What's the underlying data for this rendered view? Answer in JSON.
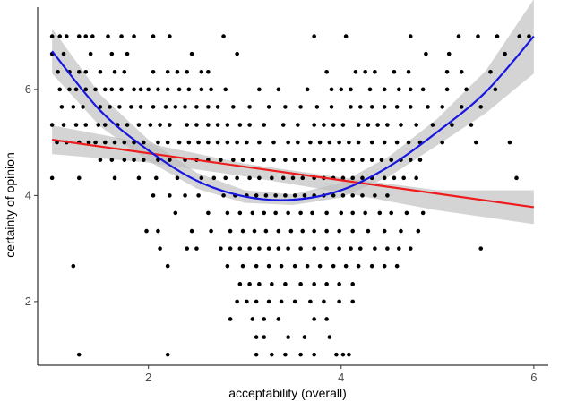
{
  "chart_data": {
    "type": "scatter",
    "title": "",
    "xlabel": "acceptability (overall)",
    "ylabel": "certainty of opinion",
    "xlim": [
      0.85,
      6.15
    ],
    "ylim": [
      0.8,
      7.55
    ],
    "x_ticks": [
      2,
      4,
      6
    ],
    "y_ticks": [
      2,
      4,
      6
    ],
    "grid": false,
    "colors": {
      "points": "#000000",
      "linear_fit": "#ee1c1c",
      "loess_fit": "#1717e0",
      "ribbon": "#bdbdbd"
    },
    "points": {
      "jitter_note_values_are_visible_rows": true,
      "rows": [
        {
          "y": 7.0,
          "x": [
            1.0,
            1.08,
            1.15,
            1.28,
            1.35,
            1.42,
            1.58,
            1.72,
            1.85,
            2.05,
            2.22,
            2.78,
            3.72,
            4.05,
            4.72,
            5.22,
            5.42,
            5.62,
            5.85,
            5.95
          ]
        },
        {
          "y": 6.67,
          "x": [
            1.0,
            1.12,
            1.4,
            1.62,
            1.78,
            2.45,
            2.92,
            4.88,
            5.12,
            5.7
          ]
        },
        {
          "y": 6.33,
          "x": [
            1.06,
            1.18,
            1.28,
            1.35,
            1.5,
            1.65,
            1.75,
            2.05,
            2.2,
            2.3,
            2.4,
            2.55,
            2.62,
            3.85,
            4.15,
            4.25,
            4.35,
            4.55,
            4.7,
            5.1,
            5.25,
            5.55
          ]
        },
        {
          "y": 6.0,
          "x": [
            1.08,
            1.18,
            1.25,
            1.35,
            1.45,
            1.55,
            1.62,
            1.72,
            1.85,
            1.92,
            2.0,
            2.1,
            2.2,
            2.32,
            2.42,
            2.55,
            2.65,
            2.8,
            3.15,
            3.35,
            3.65,
            3.9,
            4.0,
            4.1,
            4.3,
            4.45,
            4.6,
            4.72,
            4.85,
            5.1,
            5.3,
            5.6
          ]
        },
        {
          "y": 5.67,
          "x": [
            1.1,
            1.22,
            1.32,
            1.5,
            1.6,
            1.7,
            1.82,
            1.92,
            2.05,
            2.18,
            2.28,
            2.38,
            2.5,
            2.62,
            2.72,
            2.88,
            3.05,
            3.25,
            3.42,
            3.58,
            3.75,
            3.9,
            4.1,
            4.2,
            4.32,
            4.45,
            4.58,
            4.72,
            4.9,
            5.05,
            5.25,
            5.45
          ]
        },
        {
          "y": 5.33,
          "x": [
            1.0,
            1.12,
            1.25,
            1.35,
            1.48,
            1.55,
            1.68,
            1.78,
            1.9,
            2.02,
            2.12,
            2.22,
            2.4,
            2.5,
            2.62,
            2.72,
            2.82,
            2.95,
            3.05,
            3.2,
            3.4,
            3.55,
            3.72,
            3.82,
            3.92,
            4.02,
            4.18,
            4.28,
            4.38,
            4.48,
            4.62,
            4.78,
            4.95,
            5.15,
            5.35
          ]
        },
        {
          "y": 5.0,
          "x": [
            1.05,
            1.15,
            1.28,
            1.38,
            1.45,
            1.55,
            1.65,
            1.75,
            1.85,
            1.95,
            2.1,
            2.2,
            2.32,
            2.42,
            2.52,
            2.62,
            2.72,
            2.82,
            2.92,
            3.02,
            3.15,
            3.3,
            3.45,
            3.55,
            3.68,
            3.78,
            3.88,
            3.98,
            4.08,
            4.18,
            4.32,
            4.45,
            4.58,
            4.7,
            4.82,
            5.05,
            5.4,
            5.75
          ]
        },
        {
          "y": 4.67,
          "x": [
            1.5,
            1.62,
            1.75,
            1.85,
            1.95,
            2.1,
            2.22,
            2.38,
            2.5,
            2.62,
            2.75,
            2.88,
            2.98,
            3.08,
            3.2,
            3.3,
            3.42,
            3.52,
            3.62,
            3.72,
            3.82,
            3.92,
            4.02,
            4.12,
            4.22,
            4.32,
            4.42,
            4.52,
            4.62,
            4.72,
            4.82
          ]
        },
        {
          "y": 4.33,
          "x": [
            1.0,
            1.28,
            1.65,
            1.9,
            2.08,
            2.3,
            2.55,
            2.68,
            2.8,
            2.92,
            3.05,
            3.15,
            3.28,
            3.4,
            3.5,
            3.6,
            3.72,
            3.82,
            3.92,
            4.02,
            4.12,
            4.22,
            4.32,
            4.45,
            4.55,
            4.65,
            4.78,
            5.82
          ]
        },
        {
          "y": 4.0,
          "x": [
            2.05,
            2.22,
            2.38,
            2.52,
            2.78,
            2.9,
            3.02,
            3.12,
            3.22,
            3.32,
            3.42,
            3.52,
            3.62,
            3.72,
            3.82,
            3.92,
            4.02,
            4.12,
            4.22,
            4.35,
            4.48
          ]
        },
        {
          "y": 3.67,
          "x": [
            2.28,
            2.62,
            2.82,
            2.95,
            3.08,
            3.2,
            3.32,
            3.45,
            3.58,
            3.7,
            3.85,
            4.0,
            4.12,
            4.25,
            4.4,
            4.52,
            4.68,
            4.85
          ]
        },
        {
          "y": 3.33,
          "x": [
            1.98,
            2.1,
            2.45,
            2.65,
            2.85,
            2.98,
            3.1,
            3.22,
            3.35,
            3.48,
            3.6,
            3.72,
            3.85,
            3.98,
            4.12,
            4.28,
            4.45,
            4.62,
            4.8
          ]
        },
        {
          "y": 3.0,
          "x": [
            2.12,
            2.4,
            2.5,
            2.75,
            2.85,
            2.95,
            3.05,
            3.15,
            3.25,
            3.35,
            3.45,
            3.58,
            3.72,
            3.85,
            3.98,
            4.1,
            4.2,
            4.35,
            4.48,
            4.6,
            4.72,
            5.45
          ]
        },
        {
          "y": 2.67,
          "x": [
            1.22,
            2.2,
            2.82,
            2.98,
            3.12,
            3.25,
            3.38,
            3.52,
            3.65,
            3.78,
            3.92,
            4.05,
            4.18,
            4.32,
            4.45,
            4.58
          ]
        },
        {
          "y": 2.33,
          "x": [
            2.95,
            3.05,
            3.15,
            3.28,
            3.42,
            3.58,
            3.72,
            3.85,
            3.98,
            4.12
          ]
        },
        {
          "y": 2.0,
          "x": [
            2.92,
            3.02,
            3.12,
            3.25,
            3.38,
            3.52,
            3.68,
            3.82,
            3.98,
            4.12
          ]
        },
        {
          "y": 1.67,
          "x": [
            2.85,
            3.08,
            3.2,
            3.35,
            3.72,
            3.85
          ]
        },
        {
          "y": 1.33,
          "x": [
            3.12,
            3.2,
            3.45,
            3.62,
            3.88
          ]
        },
        {
          "y": 1.0,
          "x": [
            1.28,
            2.2,
            3.12,
            3.28,
            3.42,
            3.58,
            3.72,
            3.95,
            4.02,
            4.08
          ]
        }
      ]
    },
    "series": [
      {
        "fit": "linear",
        "x": [
          1.0,
          6.0
        ],
        "y": [
          5.05,
          3.78
        ],
        "band_x": [
          1.0,
          2.0,
          3.0,
          4.0,
          5.0,
          6.0
        ],
        "band_lower": [
          4.78,
          4.62,
          4.36,
          4.06,
          3.72,
          3.46
        ],
        "band_upper": [
          5.32,
          4.98,
          4.6,
          4.34,
          4.1,
          4.1
        ]
      },
      {
        "fit": "loess",
        "x": [
          1.0,
          1.5,
          2.0,
          2.5,
          3.0,
          3.5,
          4.0,
          4.5,
          5.0,
          5.5,
          6.0
        ],
        "y": [
          6.72,
          5.6,
          4.85,
          4.28,
          3.98,
          3.92,
          4.1,
          4.55,
          5.2,
          5.95,
          7.0
        ],
        "band_lower": [
          6.3,
          5.3,
          4.65,
          4.13,
          3.86,
          3.82,
          3.96,
          4.36,
          4.95,
          5.55,
          6.3
        ],
        "band_upper": [
          7.15,
          5.9,
          5.05,
          4.43,
          4.1,
          4.02,
          4.24,
          4.74,
          5.45,
          6.35,
          7.7
        ]
      }
    ]
  }
}
